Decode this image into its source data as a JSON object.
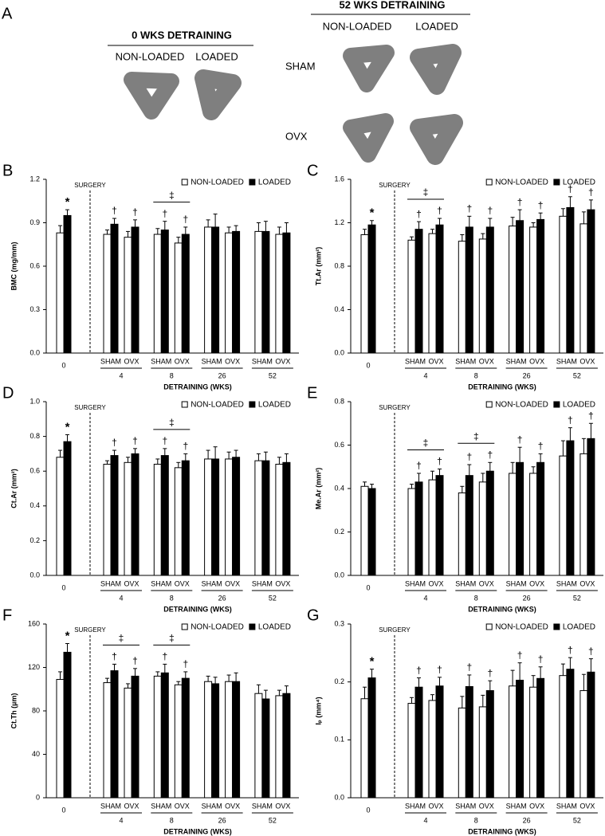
{
  "panel_a": {
    "label": "A",
    "left": {
      "title": "0 WKS DETRAINING",
      "columns": [
        "NON-LOADED",
        "LOADED"
      ]
    },
    "right": {
      "title": "52 WKS DETRAINING",
      "columns": [
        "NON-LOADED",
        "LOADED"
      ],
      "rows": [
        "SHAM",
        "OVX"
      ]
    }
  },
  "chart_data": [
    {
      "type": "bar",
      "panel_label": "B",
      "y_label": "BMC (mg/mm)",
      "x_label": "DETRAINING (WKS)",
      "annotation": "SURGERY",
      "categories": [
        null,
        "SHAM",
        "OVX",
        "SHAM",
        "OVX",
        "SHAM",
        "OVX",
        "SHAM",
        "OVX"
      ],
      "groups": [
        "0",
        "4",
        "8",
        "26",
        "52"
      ],
      "ylim": [
        0,
        1.2
      ],
      "yticks": [
        {
          "value": 0,
          "label": "0.0"
        },
        0.3,
        0.6,
        0.9,
        1.2
      ],
      "series": [
        {
          "name": "NON-LOADED",
          "color": "#ffffff",
          "values": [
            0.83,
            0.82,
            0.8,
            0.82,
            0.76,
            0.87,
            0.83,
            0.84,
            0.82
          ],
          "errors": [
            0.05,
            0.03,
            0.04,
            0.04,
            0.04,
            0.05,
            0.04,
            0.06,
            0.05
          ]
        },
        {
          "name": "LOADED",
          "color": "#000000",
          "values": [
            0.95,
            0.89,
            0.87,
            0.85,
            0.82,
            0.87,
            0.84,
            0.84,
            0.83
          ],
          "errors": [
            0.04,
            0.04,
            0.05,
            0.06,
            0.05,
            0.09,
            0.04,
            0.07,
            0.07
          ],
          "symbols": [
            "*",
            "†",
            "†",
            "†",
            "†",
            null,
            null,
            null,
            null
          ]
        }
      ],
      "group_brackets": [
        null,
        null,
        "‡",
        null,
        null
      ]
    },
    {
      "type": "bar",
      "panel_label": "C",
      "y_label": "Tt.Ar (mm²)",
      "x_label": "DETRAINING (WKS)",
      "annotation": "SURGERY",
      "categories": [
        null,
        "SHAM",
        "OVX",
        "SHAM",
        "OVX",
        "SHAM",
        "OVX",
        "SHAM",
        "OVX"
      ],
      "groups": [
        "0",
        "4",
        "8",
        "26",
        "52"
      ],
      "ylim": [
        0,
        1.6
      ],
      "yticks": [
        {
          "value": 0,
          "label": "0.0"
        },
        0.4,
        0.8,
        1.2,
        1.6
      ],
      "series": [
        {
          "name": "NON-LOADED",
          "color": "#ffffff",
          "values": [
            1.09,
            1.04,
            1.1,
            1.03,
            1.05,
            1.17,
            1.16,
            1.26,
            1.19
          ],
          "errors": [
            0.05,
            0.03,
            0.04,
            0.06,
            0.05,
            0.08,
            0.04,
            0.07,
            0.11
          ]
        },
        {
          "name": "LOADED",
          "color": "#000000",
          "values": [
            1.18,
            1.14,
            1.18,
            1.16,
            1.16,
            1.22,
            1.23,
            1.34,
            1.32
          ],
          "errors": [
            0.04,
            0.07,
            0.06,
            0.1,
            0.08,
            0.1,
            0.06,
            0.1,
            0.09
          ],
          "symbols": [
            "*",
            "†",
            "†",
            "†",
            "†",
            "†",
            "†",
            "†",
            "†"
          ]
        }
      ],
      "group_brackets": [
        null,
        "‡",
        null,
        null,
        null
      ]
    },
    {
      "type": "bar",
      "panel_label": "D",
      "y_label": "Ct.Ar (mm²)",
      "x_label": "DETRAINING (WKS)",
      "annotation": "SURGERY",
      "categories": [
        null,
        "SHAM",
        "OVX",
        "SHAM",
        "OVX",
        "SHAM",
        "OVX",
        "SHAM",
        "OVX"
      ],
      "groups": [
        "0",
        "4",
        "8",
        "26",
        "52"
      ],
      "ylim": [
        0,
        1.0
      ],
      "yticks": [
        {
          "value": 0,
          "label": "0.0"
        },
        0.2,
        0.4,
        0.6,
        0.8,
        {
          "value": 1.0,
          "label": "1.0"
        }
      ],
      "series": [
        {
          "name": "NON-LOADED",
          "color": "#ffffff",
          "values": [
            0.68,
            0.64,
            0.65,
            0.64,
            0.62,
            0.67,
            0.67,
            0.66,
            0.64
          ],
          "errors": [
            0.04,
            0.02,
            0.03,
            0.03,
            0.03,
            0.05,
            0.04,
            0.04,
            0.04
          ]
        },
        {
          "name": "LOADED",
          "color": "#000000",
          "values": [
            0.77,
            0.69,
            0.7,
            0.69,
            0.66,
            0.67,
            0.68,
            0.66,
            0.65
          ],
          "errors": [
            0.04,
            0.03,
            0.03,
            0.04,
            0.04,
            0.07,
            0.04,
            0.05,
            0.05
          ],
          "symbols": [
            "*",
            "†",
            "†",
            "†",
            "†",
            null,
            null,
            null,
            null
          ]
        }
      ],
      "group_brackets": [
        null,
        null,
        "‡",
        null,
        null
      ]
    },
    {
      "type": "bar",
      "panel_label": "E",
      "y_label": "Me.Ar (mm²)",
      "x_label": "DETRAINING (WKS)",
      "annotation": "SURGERY",
      "categories": [
        null,
        "SHAM",
        "OVX",
        "SHAM",
        "OVX",
        "SHAM",
        "OVX",
        "SHAM",
        "OVX"
      ],
      "groups": [
        "0",
        "4",
        "8",
        "26",
        "52"
      ],
      "ylim": [
        0,
        0.8
      ],
      "yticks": [
        {
          "value": 0,
          "label": "0.0"
        },
        0.2,
        0.4,
        0.6,
        0.8
      ],
      "series": [
        {
          "name": "NON-LOADED",
          "color": "#ffffff",
          "values": [
            0.41,
            0.4,
            0.44,
            0.38,
            0.43,
            0.47,
            0.47,
            0.55,
            0.56
          ],
          "errors": [
            0.02,
            0.02,
            0.04,
            0.03,
            0.04,
            0.05,
            0.03,
            0.07,
            0.07
          ]
        },
        {
          "name": "LOADED",
          "color": "#000000",
          "values": [
            0.4,
            0.43,
            0.46,
            0.46,
            0.48,
            0.52,
            0.52,
            0.62,
            0.63
          ],
          "errors": [
            0.02,
            0.04,
            0.03,
            0.05,
            0.04,
            0.07,
            0.04,
            0.06,
            0.07
          ],
          "symbols": [
            null,
            "†",
            "†",
            "†",
            "†",
            "†",
            "†",
            "†",
            "†"
          ]
        }
      ],
      "group_brackets": [
        null,
        "‡",
        "‡",
        null,
        null
      ]
    },
    {
      "type": "bar",
      "panel_label": "F",
      "y_label": "Ct.Th (µm)",
      "x_label": "DETRAINING (WKS)",
      "annotation": "SURGERY",
      "categories": [
        null,
        "SHAM",
        "OVX",
        "SHAM",
        "OVX",
        "SHAM",
        "OVX",
        "SHAM",
        "OVX"
      ],
      "groups": [
        "0",
        "4",
        "8",
        "26",
        "52"
      ],
      "ylim": [
        0,
        160
      ],
      "yticks": [
        0,
        40,
        80,
        120,
        160
      ],
      "series": [
        {
          "name": "NON-LOADED",
          "color": "#ffffff",
          "values": [
            109,
            106,
            101,
            112,
            104,
            107,
            107,
            96,
            94
          ],
          "errors": [
            7,
            4,
            4,
            4,
            3,
            5,
            6,
            8,
            5
          ]
        },
        {
          "name": "LOADED",
          "color": "#000000",
          "values": [
            134,
            117,
            112,
            115,
            110,
            105,
            107,
            91,
            96
          ],
          "errors": [
            8,
            6,
            7,
            8,
            6,
            6,
            8,
            8,
            7
          ],
          "symbols": [
            "*",
            "†",
            "†",
            "†",
            "†",
            null,
            null,
            null,
            null
          ]
        }
      ],
      "group_brackets": [
        null,
        "‡",
        "‡",
        null,
        null
      ]
    },
    {
      "type": "bar",
      "panel_label": "G",
      "y_label": "Iₚ (mm⁴)",
      "x_label": "DETRAINING (WKS)",
      "annotation": "SURGERY",
      "categories": [
        null,
        "SHAM",
        "OVX",
        "SHAM",
        "OVX",
        "SHAM",
        "OVX",
        "SHAM",
        "OVX"
      ],
      "groups": [
        "0",
        "4",
        "8",
        "26",
        "52"
      ],
      "ylim": [
        0,
        0.3
      ],
      "yticks": [
        {
          "value": 0,
          "label": "0.0"
        },
        0.1,
        0.2,
        0.3
      ],
      "series": [
        {
          "name": "NON-LOADED",
          "color": "#ffffff",
          "values": [
            0.171,
            0.163,
            0.168,
            0.155,
            0.157,
            0.193,
            0.191,
            0.211,
            0.185
          ],
          "errors": [
            0.02,
            0.01,
            0.01,
            0.02,
            0.02,
            0.027,
            0.02,
            0.02,
            0.028
          ]
        },
        {
          "name": "LOADED",
          "color": "#000000",
          "values": [
            0.207,
            0.191,
            0.193,
            0.192,
            0.185,
            0.203,
            0.206,
            0.222,
            0.217
          ],
          "errors": [
            0.015,
            0.016,
            0.015,
            0.02,
            0.017,
            0.03,
            0.02,
            0.02,
            0.023
          ],
          "symbols": [
            "*",
            "†",
            "†",
            "†",
            "†",
            "†",
            "†",
            "†",
            "†"
          ]
        }
      ],
      "group_brackets": [
        null,
        null,
        null,
        null,
        null
      ]
    }
  ]
}
